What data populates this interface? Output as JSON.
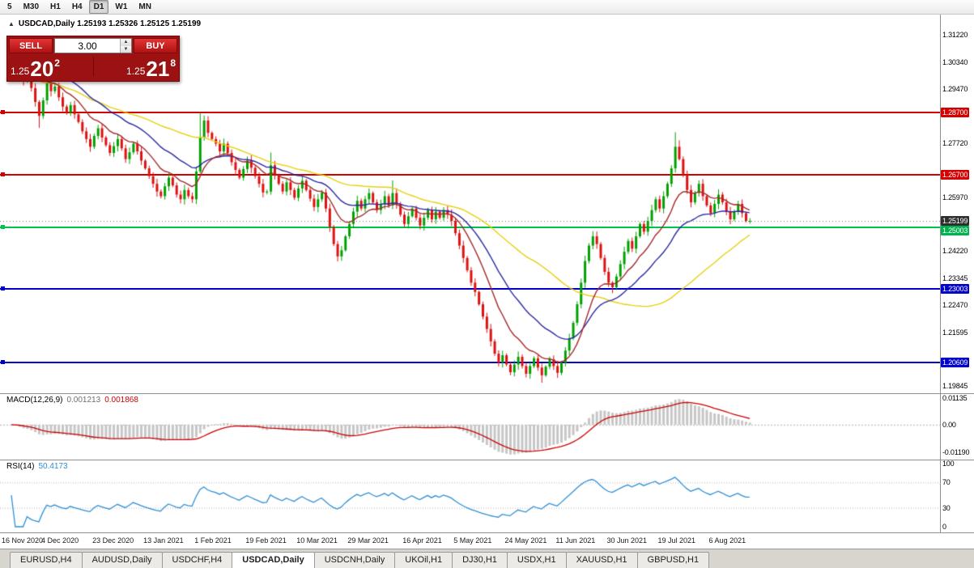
{
  "toolbar": {
    "timeframes": [
      {
        "label": "5",
        "active": false
      },
      {
        "label": "M30",
        "active": false
      },
      {
        "label": "H1",
        "active": false
      },
      {
        "label": "H4",
        "active": false
      },
      {
        "label": "D1",
        "active": true
      },
      {
        "label": "W1",
        "active": false
      },
      {
        "label": "MN",
        "active": false
      }
    ]
  },
  "chart": {
    "title_text": "USDCAD,Daily 1.25193 1.25326 1.25125 1.25199",
    "symbol": "USDCAD",
    "period": "Daily",
    "open": "1.25193",
    "high": "1.25326",
    "low": "1.25125",
    "close": "1.25199",
    "current_price": 1.25199,
    "current_price_line_color": "#777777"
  },
  "one_click": {
    "collapse_icon": "▲",
    "sell_label": "SELL",
    "buy_label": "BUY",
    "volume": "3.00",
    "spin_up": "▲",
    "spin_down": "▼",
    "sell_price": {
      "small": "1.25",
      "big": "20",
      "sup": "2"
    },
    "buy_price": {
      "small": "1.25",
      "big": "21",
      "sup": "8"
    }
  },
  "price_axis": {
    "ticks": [
      {
        "label": "1.31220",
        "price": 1.3122
      },
      {
        "label": "1.30340",
        "price": 1.3034
      },
      {
        "label": "1.29470",
        "price": 1.2947
      },
      {
        "label": "1.27720",
        "price": 1.2772
      },
      {
        "label": "1.25970",
        "price": 1.2597
      },
      {
        "label": "1.24220",
        "price": 1.2422
      },
      {
        "label": "1.23345",
        "price": 1.23345
      },
      {
        "label": "1.22470",
        "price": 1.2247
      },
      {
        "label": "1.21595",
        "price": 1.21595
      },
      {
        "label": "1.19845",
        "price": 1.19845
      }
    ],
    "badges": [
      {
        "label": "1.28700",
        "price": 1.287,
        "bg": "#d40000"
      },
      {
        "label": "1.26700",
        "price": 1.267,
        "bg": "#d40000"
      },
      {
        "label": "1.25199",
        "price": 1.25199,
        "bg": "#2e2e2e"
      },
      {
        "label": "1.25003",
        "price": 1.25003,
        "bg": "#00b14f"
      },
      {
        "label": "1.23003",
        "price": 1.23003,
        "bg": "#0000cc"
      },
      {
        "label": "1.20609",
        "price": 1.20609,
        "bg": "#0000cc"
      }
    ]
  },
  "hlines": [
    {
      "price": 1.287,
      "color": "#d40000",
      "width": 2
    },
    {
      "price": 1.267,
      "color": "#d40000",
      "width": 2
    },
    {
      "price": 1.25003,
      "color": "#00c24e",
      "width": 2
    },
    {
      "price": 1.23003,
      "color": "#0000cc",
      "width": 2
    },
    {
      "price": 1.20609,
      "color": "#0000cc",
      "width": 2
    }
  ],
  "macd": {
    "label": "MACD(12,26,9)",
    "macd_value": "0.001213",
    "signal_value": "0.001868",
    "fast_period": 12,
    "slow_period": 26,
    "signal_period": 9,
    "axis_max": 0.0135,
    "axis_min": -0.015,
    "axis_labels": [
      {
        "label": "0.01135",
        "value": 0.01135
      },
      {
        "label": "0.00",
        "value": 0
      },
      {
        "label": "-0.01190",
        "value": -0.0119
      }
    ],
    "hist_color": "#c6c6c6",
    "signal_color": "#cc0000"
  },
  "rsi": {
    "label": "RSI(14)",
    "value": "50.4173",
    "period": 14,
    "line_color": "#2f8fd4",
    "levels": [
      {
        "label": "100",
        "value": 100
      },
      {
        "label": "70",
        "value": 70
      },
      {
        "label": "30",
        "value": 30
      },
      {
        "label": "0",
        "value": 0
      }
    ],
    "level_lines": [
      70,
      30
    ]
  },
  "tabs": {
    "items": [
      {
        "label": "EURUSD,H4",
        "active": false
      },
      {
        "label": "AUDUSD,Daily",
        "active": false
      },
      {
        "label": "USDCHF,H4",
        "active": false
      },
      {
        "label": "USDCAD,Daily",
        "active": true
      },
      {
        "label": "USDCNH,Daily",
        "active": false
      },
      {
        "label": "UKOil,H1",
        "active": false
      },
      {
        "label": "DJ30,H1",
        "active": false
      },
      {
        "label": "USDX,H1",
        "active": false
      },
      {
        "label": "XAUUSD,H1",
        "active": false
      },
      {
        "label": "GBPUSD,H1",
        "active": false
      }
    ]
  },
  "chart_data": {
    "type": "candlestick",
    "symbol": "USDCAD",
    "timeframe": "Daily",
    "price_top": 1.3188,
    "price_bottom": 1.1962,
    "first_open": 1.311,
    "up_color": "#00a000",
    "down_color": "#dd1111",
    "closes": [
      1.308,
      1.304,
      1.3,
      1.2975,
      1.2995,
      1.295,
      1.2905,
      1.286,
      1.291,
      1.2965,
      1.294,
      1.2955,
      1.292,
      1.289,
      1.287,
      1.2895,
      1.2865,
      1.284,
      1.281,
      1.2785,
      1.276,
      1.2795,
      1.282,
      1.279,
      1.2765,
      1.274,
      1.2762,
      1.2785,
      1.2755,
      1.272,
      1.2742,
      1.277,
      1.2745,
      1.2715,
      1.269,
      1.2665,
      1.264,
      1.2615,
      1.26,
      1.2632,
      1.266,
      1.2635,
      1.2605,
      1.259,
      1.262,
      1.26,
      1.259,
      1.268,
      1.279,
      1.2845,
      1.2805,
      1.2785,
      1.277,
      1.2745,
      1.277,
      1.274,
      1.271,
      1.2685,
      1.266,
      1.2688,
      1.2715,
      1.2692,
      1.2665,
      1.264,
      1.2612,
      1.2615,
      1.27,
      1.2668,
      1.264,
      1.2615,
      1.2645,
      1.262,
      1.2595,
      1.2625,
      1.265,
      1.262,
      1.2592,
      1.2565,
      1.259,
      1.2612,
      1.256,
      1.25,
      1.2445,
      1.2405,
      1.2425,
      1.247,
      1.251,
      1.255,
      1.2585,
      1.256,
      1.259,
      1.261,
      1.258,
      1.2555,
      1.2575,
      1.26,
      1.257,
      1.261,
      1.2575,
      1.254,
      1.251,
      1.2535,
      1.256,
      1.253,
      1.2505,
      1.253,
      1.2555,
      1.2525,
      1.255,
      1.253,
      1.2555,
      1.254,
      1.252,
      1.248,
      1.244,
      1.24,
      1.236,
      1.232,
      1.229,
      1.225,
      1.221,
      1.217,
      1.213,
      1.209,
      1.206,
      1.2085,
      1.2055,
      1.203,
      1.2055,
      1.208,
      1.205,
      1.2025,
      1.205,
      1.2075,
      1.2045,
      1.202,
      1.2048,
      1.2072,
      1.205,
      1.2028,
      1.206,
      1.21,
      1.214,
      1.219,
      1.225,
      1.232,
      1.239,
      1.244,
      1.247,
      1.2445,
      1.24,
      1.2355,
      1.232,
      1.2305,
      1.234,
      1.238,
      1.242,
      1.2455,
      1.243,
      1.247,
      1.251,
      1.2485,
      1.252,
      1.2555,
      1.259,
      1.256,
      1.26,
      1.264,
      1.269,
      1.276,
      1.272,
      1.267,
      1.262,
      1.258,
      1.261,
      1.264,
      1.26,
      1.257,
      1.2545,
      1.2575,
      1.2605,
      1.258,
      1.255,
      1.2525,
      1.255,
      1.2575,
      1.2545,
      1.252,
      1.252
    ],
    "wick_overrides": {
      "0": {
        "h": 1.3112
      },
      "7": {
        "l": 1.2821
      },
      "48": {
        "h": 1.287
      },
      "49": {
        "h": 1.2861
      },
      "66": {
        "h": 1.2741
      },
      "83": {
        "l": 1.2389
      },
      "97": {
        "h": 1.2651
      },
      "135": {
        "l": 1.1996
      },
      "148": {
        "h": 1.2487
      },
      "153": {
        "l": 1.2286
      },
      "169": {
        "h": 1.2807
      },
      "170": {
        "h": 1.2781
      }
    },
    "moving_averages": [
      {
        "name": "slow",
        "kind": "sma",
        "period": 50,
        "color": "#e8cf10"
      },
      {
        "name": "medium",
        "kind": "ema",
        "period": 26,
        "color": "#2929a3"
      },
      {
        "name": "fast",
        "kind": "ema",
        "period": 12,
        "color": "#a52a2a"
      }
    ],
    "x_labels": [
      {
        "label": "16 Nov 2020",
        "index": 0
      },
      {
        "label": "4 Dec 2020",
        "index": 13
      },
      {
        "label": "23 Dec 2020",
        "index": 26
      },
      {
        "label": "13 Jan 2021",
        "index": 39
      },
      {
        "label": "1 Feb 2021",
        "index": 52
      },
      {
        "label": "19 Feb 2021",
        "index": 65
      },
      {
        "label": "10 Mar 2021",
        "index": 78
      },
      {
        "label": "29 Mar 2021",
        "index": 91
      },
      {
        "label": "16 Apr 2021",
        "index": 105
      },
      {
        "label": "5 May 2021",
        "index": 118
      },
      {
        "label": "24 May 2021",
        "index": 131
      },
      {
        "label": "11 Jun 2021",
        "index": 144
      },
      {
        "label": "30 Jun 2021",
        "index": 157
      },
      {
        "label": "19 Jul 2021",
        "index": 170
      },
      {
        "label": "6 Aug 2021",
        "index": 183
      }
    ]
  }
}
